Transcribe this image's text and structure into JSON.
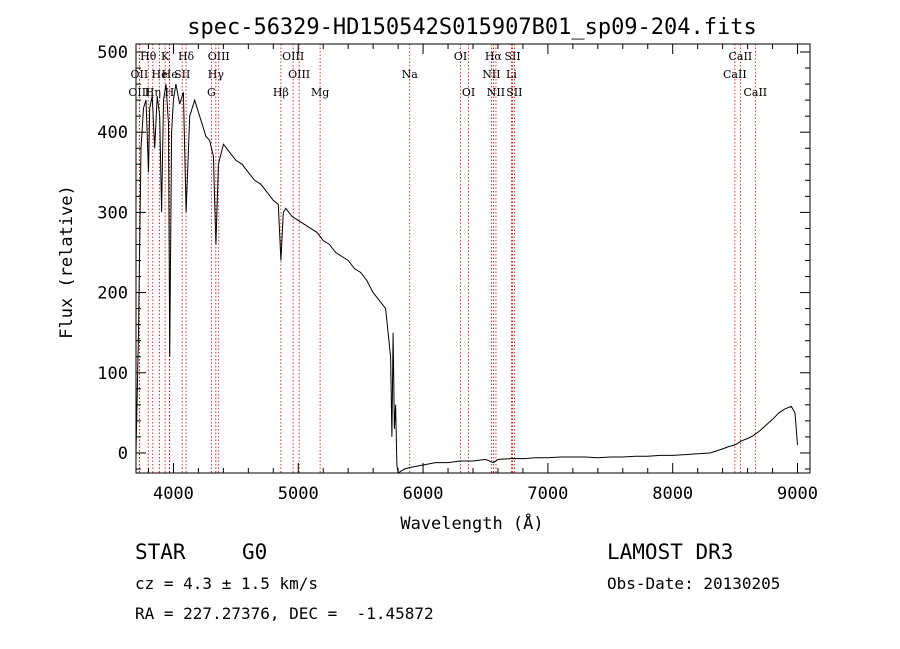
{
  "chart_data": {
    "type": "line",
    "title": "spec-56329-HD150542S015907B01_sp09-204.fits",
    "xlabel": "Wavelength (Å)",
    "ylabel": "Flux (relative)",
    "xlim": [
      3700,
      9100
    ],
    "ylim": [
      -25,
      510
    ],
    "xticks": [
      4000,
      5000,
      6000,
      7000,
      8000,
      9000
    ],
    "yticks": [
      0,
      100,
      200,
      300,
      400,
      500
    ],
    "series": [
      {
        "name": "flux",
        "x": [
          3700,
          3720,
          3740,
          3760,
          3780,
          3800,
          3810,
          3830,
          3850,
          3870,
          3890,
          3905,
          3920,
          3940,
          3960,
          3970,
          3985,
          4000,
          4020,
          4050,
          4080,
          4101,
          4130,
          4170,
          4200,
          4230,
          4260,
          4290,
          4320,
          4340,
          4360,
          4400,
          4450,
          4500,
          4550,
          4600,
          4650,
          4700,
          4750,
          4800,
          4840,
          4861,
          4880,
          4900,
          4950,
          5000,
          5050,
          5100,
          5150,
          5200,
          5250,
          5300,
          5350,
          5400,
          5450,
          5500,
          5550,
          5600,
          5650,
          5700,
          5720,
          5740,
          5750,
          5760,
          5770,
          5780,
          5790,
          5800,
          5850,
          5900,
          6000,
          6100,
          6200,
          6300,
          6400,
          6500,
          6563,
          6600,
          6700,
          6800,
          6900,
          7000,
          7100,
          7200,
          7300,
          7400,
          7500,
          7600,
          7700,
          7800,
          7900,
          8000,
          8100,
          8200,
          8300,
          8400,
          8450,
          8500,
          8550,
          8600,
          8650,
          8700,
          8750,
          8800,
          8850,
          8900,
          8950,
          8980,
          9000
        ],
        "values": [
          0,
          150,
          380,
          430,
          440,
          350,
          430,
          445,
          380,
          445,
          420,
          300,
          440,
          460,
          410,
          120,
          400,
          440,
          460,
          435,
          450,
          300,
          420,
          440,
          425,
          410,
          395,
          390,
          370,
          260,
          360,
          385,
          375,
          365,
          360,
          350,
          340,
          335,
          325,
          315,
          310,
          240,
          300,
          305,
          295,
          290,
          285,
          280,
          275,
          265,
          260,
          250,
          245,
          240,
          230,
          225,
          215,
          200,
          190,
          180,
          150,
          120,
          20,
          150,
          30,
          60,
          -15,
          -25,
          -20,
          -18,
          -15,
          -12,
          -12,
          -10,
          -10,
          -8,
          -12,
          -8,
          -7,
          -7,
          -6,
          -6,
          -5,
          -5,
          -5,
          -6,
          -5,
          -5,
          -4,
          -4,
          -3,
          -3,
          -2,
          -1,
          0,
          5,
          8,
          10,
          15,
          18,
          22,
          28,
          35,
          42,
          50,
          55,
          58,
          50,
          10
        ]
      }
    ],
    "lines": [
      {
        "name": "OII",
        "x": 3727,
        "row": 1
      },
      {
        "name": "OIII",
        "x": 3727,
        "row": 2
      },
      {
        "name": "Hθ",
        "x": 3798,
        "row": 0
      },
      {
        "name": "Hη",
        "x": 3835,
        "row": 2
      },
      {
        "name": "He",
        "x": 3889,
        "row": 1
      },
      {
        "name": "K",
        "x": 3933,
        "row": 0
      },
      {
        "name": "He",
        "x": 3970,
        "row": 1
      },
      {
        "name": "H",
        "x": 3968,
        "row": 2
      },
      {
        "name": "SII",
        "x": 4070,
        "row": 1
      },
      {
        "name": "Hδ",
        "x": 4101,
        "row": 0
      },
      {
        "name": "OIII",
        "x": 4363,
        "row": 0
      },
      {
        "name": "Hγ",
        "x": 4340,
        "row": 1
      },
      {
        "name": "G",
        "x": 4304,
        "row": 2
      },
      {
        "name": "Hβ",
        "x": 4861,
        "row": 2
      },
      {
        "name": "OIII",
        "x": 4959,
        "row": 0
      },
      {
        "name": "OIII",
        "x": 5007,
        "row": 1
      },
      {
        "name": "Mg",
        "x": 5175,
        "row": 2
      },
      {
        "name": "Na",
        "x": 5893,
        "row": 1
      },
      {
        "name": "OI",
        "x": 6300,
        "row": 0
      },
      {
        "name": "OI",
        "x": 6364,
        "row": 2
      },
      {
        "name": "Hα",
        "x": 6563,
        "row": 0
      },
      {
        "name": "NII",
        "x": 6548,
        "row": 1
      },
      {
        "name": "NII",
        "x": 6584,
        "row": 2
      },
      {
        "name": "SII",
        "x": 6717,
        "row": 0
      },
      {
        "name": "Li",
        "x": 6708,
        "row": 1
      },
      {
        "name": "SII",
        "x": 6731,
        "row": 2
      },
      {
        "name": "CaII",
        "x": 8542,
        "row": 0
      },
      {
        "name": "CaII",
        "x": 8498,
        "row": 1
      },
      {
        "name": "CaII",
        "x": 8662,
        "row": 2
      }
    ]
  },
  "info": {
    "class_label": "STAR",
    "subclass": "G0",
    "cz": "cz = 4.3 ± 1.5 km/s",
    "radec": "RA = 227.27376, DEC =  -1.45872",
    "survey": "LAMOST DR3",
    "obs_date": "Obs-Date: 20130205"
  },
  "colors": {
    "line_marker": "#cc0000",
    "spectrum": "#000000"
  }
}
